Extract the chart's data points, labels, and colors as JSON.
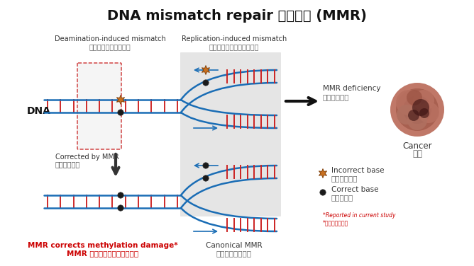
{
  "title": "DNA mismatch repair 錯配修復 (MMR)",
  "background_color": "#ffffff",
  "dna_color": "#1a6db5",
  "rung_color": "#cc2222",
  "incorrect_base_color": "#c87020",
  "correct_base_color": "#1a1a1a",
  "red_text_color": "#cc0000",
  "label_deamination_en": "Deamination-induced mismatch",
  "label_deamination_zh": "脂氨基誤導的域基錯配",
  "label_replication_en": "Replication-induced mismatch",
  "label_replication_zh": "複製過程中引入的域基錯配",
  "label_dna": "DNA",
  "label_mmr_deficiency_en": "MMR deficiency",
  "label_mmr_deficiency_zh": "錯配修復缺陯",
  "label_cancer_en": "Cancer",
  "label_cancer_zh": "腫瘼",
  "label_corrected_en": "Corrected by MMR",
  "label_corrected_zh": "錯配修復功能",
  "label_mmr_corrects_en": "MMR corrects methylation damage*",
  "label_mmr_corrects_zh": "MMR 修復甲基化誤導的損傷＊",
  "label_canonical_en": "Canonical MMR",
  "label_canonical_zh": "常規錯配修復功能",
  "label_incorrect_base_en": "Incorrect base",
  "label_incorrect_base_zh": "不正確的域基",
  "label_correct_base_en": "Correct base",
  "label_correct_base_zh": "正確的域基",
  "label_reported_en": "*Reported in current study",
  "label_reported_zh": "*由當前研究報告"
}
